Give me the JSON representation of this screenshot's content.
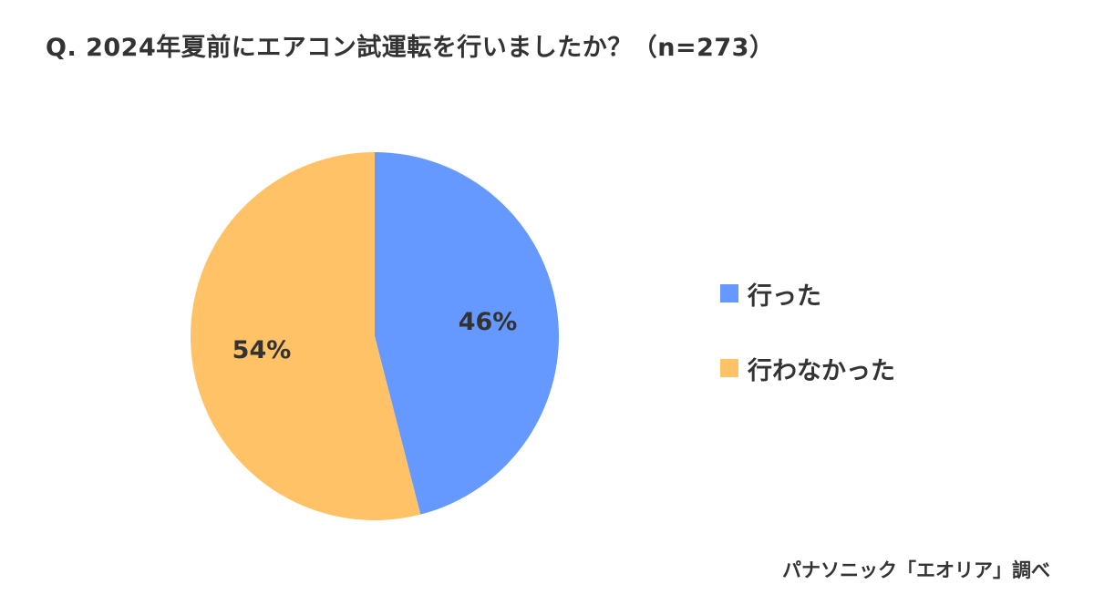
{
  "title": "Q. 2024年夏前にエアコン試運転を行いましたか？（n=273）",
  "source": "パナソニック「エオリア」調べ",
  "chart_data": {
    "type": "pie",
    "title": "Q. 2024年夏前にエアコン試運転を行いましたか？（n=273）",
    "n": 273,
    "start_angle_deg": 0,
    "direction": "clockwise",
    "legend_position": "right",
    "slices": [
      {
        "name": "行った",
        "value": 46,
        "label": "46%",
        "color": "#6699FF"
      },
      {
        "name": "行わなかった",
        "value": 54,
        "label": "54%",
        "color": "#FFC266"
      }
    ]
  }
}
